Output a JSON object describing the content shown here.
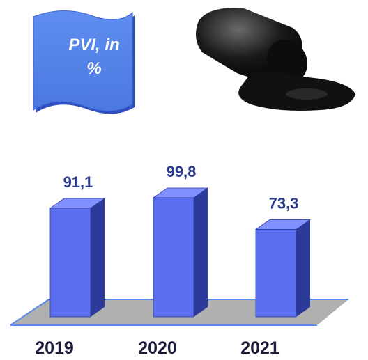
{
  "chart_data": {
    "type": "bar3d",
    "title": "PVI, in %",
    "categories": [
      "2019",
      "2020",
      "2021"
    ],
    "values": [
      91.1,
      99.8,
      73.3
    ],
    "value_labels": [
      "91,1",
      "99,8",
      "73,3"
    ],
    "color": "#5b6ef0"
  }
}
